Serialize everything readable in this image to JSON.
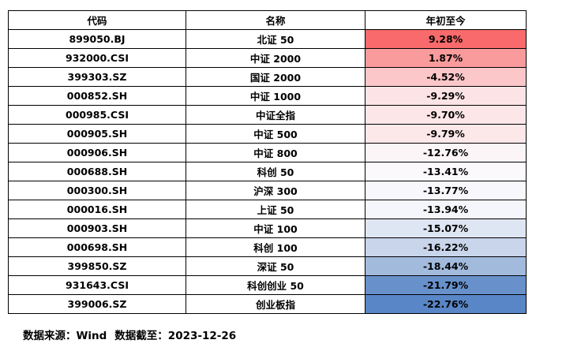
{
  "headers": [
    "代码",
    "名称",
    "年初至今"
  ],
  "rows": [
    {
      "code": "899050.BJ",
      "name": "北证 50",
      "ytd": "9.28%",
      "color": "#f86a6b"
    },
    {
      "code": "932000.CSI",
      "name": "中证 2000",
      "ytd": "1.87%",
      "color": "#f99b9c"
    },
    {
      "code": "399303.SZ",
      "name": "国证 2000",
      "ytd": "-4.52%",
      "color": "#fbc7c9"
    },
    {
      "code": "000852.SH",
      "name": "中证 1000",
      "ytd": "-9.29%",
      "color": "#fce4e6"
    },
    {
      "code": "000985.CSI",
      "name": "中证全指",
      "ytd": "-9.70%",
      "color": "#fce6e8"
    },
    {
      "code": "000905.SH",
      "name": "中证 500",
      "ytd": "-9.79%",
      "color": "#fce7e9"
    },
    {
      "code": "000906.SH",
      "name": "中证 800",
      "ytd": "-12.76%",
      "color": "#fcf5f7"
    },
    {
      "code": "000688.SH",
      "name": "科创 50",
      "ytd": "-13.41%",
      "color": "#fbf9fc"
    },
    {
      "code": "000300.SH",
      "name": "沪深 300",
      "ytd": "-13.77%",
      "color": "#f8f8fc"
    },
    {
      "code": "000016.SH",
      "name": "上证 50",
      "ytd": "-13.94%",
      "color": "#f5f6fb"
    },
    {
      "code": "000903.SH",
      "name": "中证 100",
      "ytd": "-15.07%",
      "color": "#dfe6f3"
    },
    {
      "code": "000698.SH",
      "name": "科创 100",
      "ytd": "-16.22%",
      "color": "#c8d5ea"
    },
    {
      "code": "399850.SZ",
      "name": "深证 50",
      "ytd": "-18.44%",
      "color": "#a2bbdd"
    },
    {
      "code": "931643.CSI",
      "name": "科创创业 50",
      "ytd": "-21.79%",
      "color": "#6891cc"
    },
    {
      "code": "399006.SZ",
      "name": "创业板指",
      "ytd": "-22.76%",
      "color": "#5986c6"
    }
  ],
  "footer": {
    "source": "数据来源：Wind",
    "cutoff": "数据截至：2023-12-26"
  }
}
